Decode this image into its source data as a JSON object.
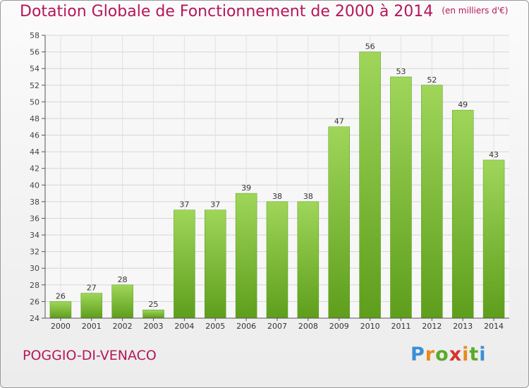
{
  "title": "Dotation Globale de Fonctionnement de 2000 à 2014",
  "unit": "(en milliers d'€)",
  "commune": "POGGIO-DI-VENACO",
  "logo_text": "Proxiti",
  "colors": {
    "accent": "#b5165a",
    "bar_top": "#9fd65a",
    "bar_bottom": "#5e9e1c"
  },
  "chart_data": {
    "type": "bar",
    "title": "Dotation Globale de Fonctionnement de 2000 à 2014",
    "categories": [
      "2000",
      "2001",
      "2002",
      "2003",
      "2004",
      "2005",
      "2006",
      "2007",
      "2008",
      "2009",
      "2010",
      "2011",
      "2012",
      "2013",
      "2014"
    ],
    "values": [
      26,
      27,
      28,
      25,
      37,
      37,
      39,
      38,
      38,
      47,
      56,
      53,
      52,
      49,
      43
    ],
    "ylim": [
      24,
      58
    ],
    "yticks": [
      24,
      26,
      28,
      30,
      32,
      34,
      36,
      38,
      40,
      42,
      44,
      46,
      48,
      50,
      52,
      54,
      56,
      58
    ],
    "grid": true,
    "xlabel": "",
    "ylabel": ""
  }
}
